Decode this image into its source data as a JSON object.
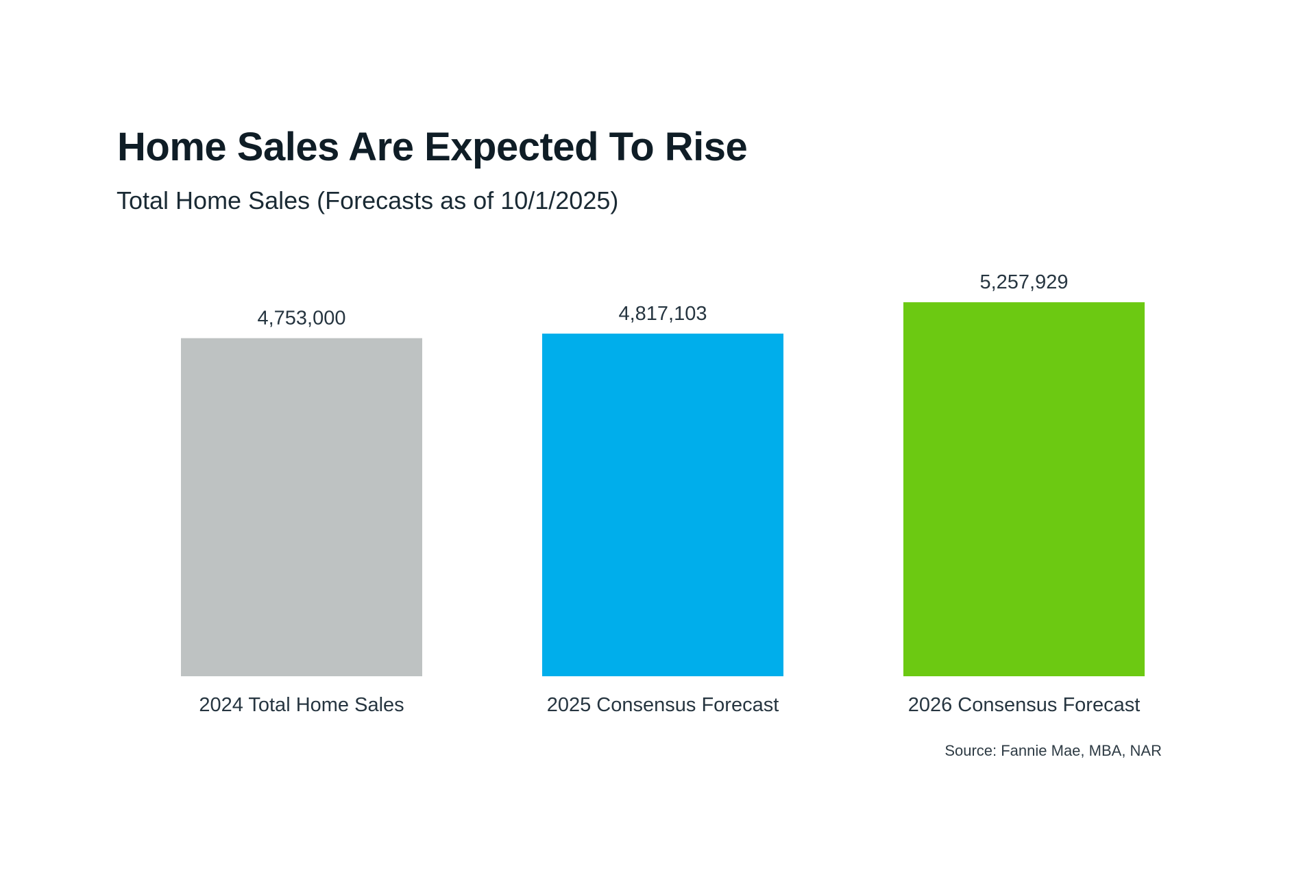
{
  "chart_data": {
    "type": "bar",
    "title": "Home Sales Are Expected To Rise",
    "subtitle": "Total Home Sales (Forecasts as of 10/1/2025)",
    "categories": [
      "2024 Total Home Sales",
      "2025 Consensus Forecast",
      "2026 Consensus Forecast"
    ],
    "values": [
      4753000,
      4817103,
      5257929
    ],
    "value_labels": [
      "4,753,000",
      "4,817,103",
      "5,257,929"
    ],
    "colors": [
      "#bec2c2",
      "#00aeeb",
      "#6cc912"
    ],
    "xlabel": "",
    "ylabel": "",
    "ylim": [
      0,
      5500000
    ],
    "grid": false,
    "axes_visible": false,
    "legend": "none",
    "source": "Source: Fannie Mae, MBA, NAR"
  }
}
